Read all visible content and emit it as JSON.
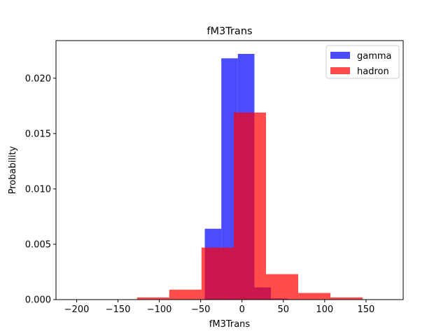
{
  "chart_data": {
    "type": "bar",
    "title": "fM3Trans",
    "xlabel": "fM3Trans",
    "ylabel": "Probability",
    "xlim": [
      -225,
      195
    ],
    "ylim": [
      0,
      0.0234
    ],
    "xticks": [
      -200,
      -150,
      -100,
      -50,
      0,
      50,
      100,
      150
    ],
    "xtick_labels": [
      "−200",
      "−150",
      "−100",
      "−50",
      "0",
      "50",
      "100",
      "150"
    ],
    "yticks": [
      0.0,
      0.005,
      0.01,
      0.015,
      0.02
    ],
    "ytick_labels": [
      "0.000",
      "0.005",
      "0.010",
      "0.015",
      "0.020"
    ],
    "grid": false,
    "legend_position": "top-right",
    "series": [
      {
        "name": "gamma",
        "color": "#0000ff",
        "opacity": 0.7,
        "bins": [
          {
            "x0": -205,
            "x1": -185,
            "value": 0.0
          },
          {
            "x0": -185,
            "x1": -165,
            "value": 0.0
          },
          {
            "x0": -165,
            "x1": -145,
            "value": 0.0
          },
          {
            "x0": -145,
            "x1": -125,
            "value": 0.0
          },
          {
            "x0": -125,
            "x1": -105,
            "value": 0.0
          },
          {
            "x0": -105,
            "x1": -85,
            "value": 0.0
          },
          {
            "x0": -85,
            "x1": -65,
            "value": 0.0
          },
          {
            "x0": -65,
            "x1": -45,
            "value": 0.0
          },
          {
            "x0": -45,
            "x1": -25,
            "value": 0.0064
          },
          {
            "x0": -25,
            "x1": -5,
            "value": 0.0218
          },
          {
            "x0": -5,
            "x1": 15,
            "value": 0.0222
          },
          {
            "x0": 15,
            "x1": 35,
            "value": 0.0011
          },
          {
            "x0": 35,
            "x1": 55,
            "value": 0.0001
          },
          {
            "x0": 55,
            "x1": 75,
            "value": 0.0
          },
          {
            "x0": 75,
            "x1": 95,
            "value": 0.0
          },
          {
            "x0": 95,
            "x1": 115,
            "value": 0.0
          },
          {
            "x0": 115,
            "x1": 135,
            "value": 0.0
          },
          {
            "x0": 135,
            "x1": 155,
            "value": 0.0
          },
          {
            "x0": 155,
            "x1": 175,
            "value": 0.0
          }
        ]
      },
      {
        "name": "hadron",
        "color": "#ff0000",
        "opacity": 0.7,
        "bins": [
          {
            "x0": -127,
            "x1": -88,
            "value": 0.0002
          },
          {
            "x0": -88,
            "x1": -49,
            "value": 0.0009
          },
          {
            "x0": -49,
            "x1": -10,
            "value": 0.0047
          },
          {
            "x0": -10,
            "x1": 29,
            "value": 0.0169
          },
          {
            "x0": 29,
            "x1": 68,
            "value": 0.0023
          },
          {
            "x0": 68,
            "x1": 107,
            "value": 0.0006
          },
          {
            "x0": 107,
            "x1": 146,
            "value": 0.0002
          }
        ]
      }
    ]
  }
}
